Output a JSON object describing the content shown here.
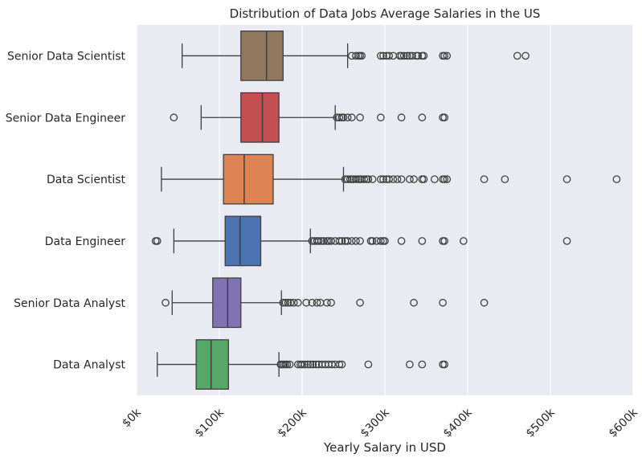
{
  "chart_data": {
    "type": "boxplot",
    "orientation": "horizontal",
    "title": "Distribution of Data Jobs Average Salaries in the US",
    "xlabel": "Yearly Salary in USD",
    "ylabel": "",
    "xlim": [
      0,
      600000
    ],
    "xticks": [
      0,
      100000,
      200000,
      300000,
      400000,
      500000,
      600000
    ],
    "xtick_labels": [
      "$0k",
      "$100k",
      "$200k",
      "$300k",
      "$400k",
      "$500k",
      "$600k"
    ],
    "grid": "vertical",
    "categories": [
      "Senior Data Scientist",
      "Senior Data Engineer",
      "Data Scientist",
      "Data Engineer",
      "Senior Data Analyst",
      "Data Analyst"
    ],
    "series": [
      {
        "category": "Senior Data Scientist",
        "color": "#937860",
        "whislo": 55000,
        "q1": 126000,
        "median": 157000,
        "q3": 177000,
        "whishi": 255000,
        "fliers": [
          260000,
          265000,
          268000,
          270000,
          272000,
          295000,
          298000,
          302000,
          305000,
          310000,
          318000,
          320000,
          323000,
          327000,
          330000,
          333000,
          338000,
          340000,
          345000,
          347000,
          370000,
          372000,
          375000,
          460000,
          470000
        ]
      },
      {
        "category": "Senior Data Engineer",
        "color": "#C44E52",
        "whislo": 78000,
        "q1": 126000,
        "median": 152000,
        "q3": 172000,
        "whishi": 240000,
        "fliers": [
          45000,
          242000,
          245000,
          248000,
          250000,
          255000,
          260000,
          270000,
          295000,
          320000,
          345000,
          370000,
          372000
        ]
      },
      {
        "category": "Data Scientist",
        "color": "#DD8452",
        "whislo": 30000,
        "q1": 105000,
        "median": 130000,
        "q3": 165000,
        "whishi": 250000,
        "fliers": [
          252000,
          255000,
          258000,
          260000,
          262000,
          265000,
          268000,
          270000,
          272000,
          275000,
          278000,
          280000,
          285000,
          295000,
          298000,
          302000,
          305000,
          310000,
          315000,
          320000,
          330000,
          335000,
          345000,
          347000,
          360000,
          370000,
          372000,
          375000,
          420000,
          445000,
          520000,
          580000
        ]
      },
      {
        "category": "Data Engineer",
        "color": "#4C72B0",
        "whislo": 45000,
        "q1": 107000,
        "median": 125000,
        "q3": 150000,
        "whishi": 210000,
        "fliers": [
          23000,
          25000,
          212000,
          215000,
          218000,
          220000,
          223000,
          226000,
          230000,
          232000,
          235000,
          240000,
          245000,
          248000,
          252000,
          255000,
          260000,
          265000,
          270000,
          283000,
          285000,
          290000,
          295000,
          298000,
          300000,
          320000,
          345000,
          370000,
          372000,
          395000,
          520000
        ]
      },
      {
        "category": "Senior Data Analyst",
        "color": "#8172B3",
        "whislo": 43000,
        "q1": 92000,
        "median": 110000,
        "q3": 126000,
        "whishi": 175000,
        "fliers": [
          35000,
          177000,
          180000,
          183000,
          186000,
          190000,
          195000,
          205000,
          212000,
          218000,
          222000,
          230000,
          235000,
          270000,
          335000,
          370000,
          420000
        ]
      },
      {
        "category": "Data Analyst",
        "color": "#55A868",
        "whislo": 25000,
        "q1": 72000,
        "median": 90000,
        "q3": 111000,
        "whishi": 172000,
        "fliers": [
          174000,
          176000,
          178000,
          180000,
          182000,
          185000,
          195000,
          198000,
          200000,
          203000,
          207000,
          210000,
          213000,
          217000,
          220000,
          224000,
          228000,
          232000,
          236000,
          240000,
          245000,
          248000,
          280000,
          330000,
          345000,
          370000,
          372000
        ]
      }
    ]
  }
}
